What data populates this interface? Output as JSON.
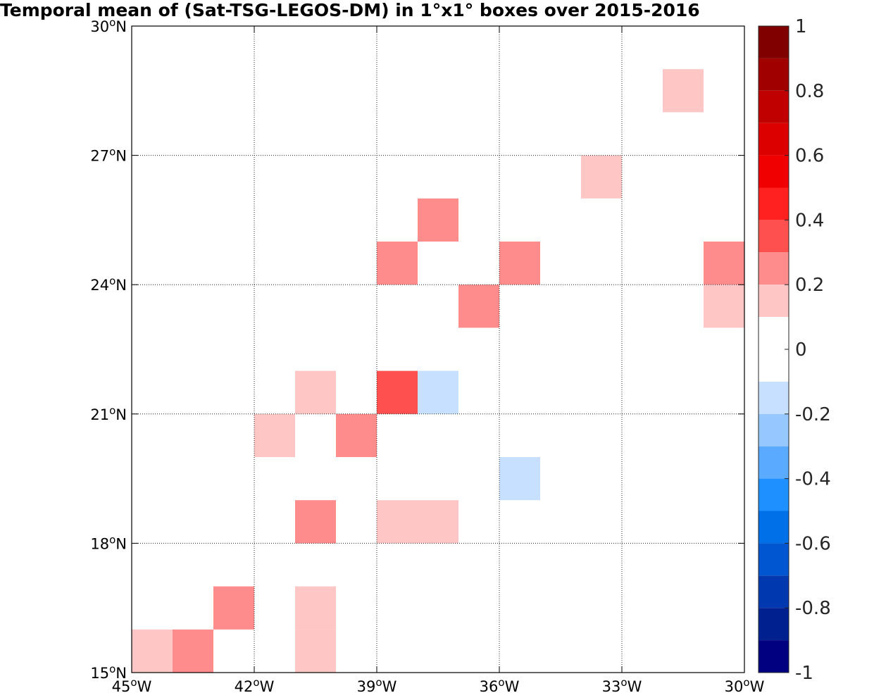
{
  "chart_data": {
    "type": "heatmap",
    "title": "Temporal mean of (Sat-TSG-LEGOS-DM) in 1°x1° boxes over 2015-2016",
    "xlim": [
      -45,
      -30
    ],
    "ylim": [
      15,
      30
    ],
    "grid": true,
    "x_ticks": [
      {
        "value": -45,
        "deg": "45",
        "suffix": "W"
      },
      {
        "value": -42,
        "deg": "42",
        "suffix": "W"
      },
      {
        "value": -39,
        "deg": "39",
        "suffix": "W"
      },
      {
        "value": -36,
        "deg": "36",
        "suffix": "W"
      },
      {
        "value": -33,
        "deg": "33",
        "suffix": "W"
      },
      {
        "value": -30,
        "deg": "30",
        "suffix": "W"
      }
    ],
    "y_ticks": [
      {
        "value": 15,
        "deg": "15",
        "suffix": "N"
      },
      {
        "value": 18,
        "deg": "18",
        "suffix": "N"
      },
      {
        "value": 21,
        "deg": "21",
        "suffix": "N"
      },
      {
        "value": 24,
        "deg": "24",
        "suffix": "N"
      },
      {
        "value": 27,
        "deg": "27",
        "suffix": "N"
      },
      {
        "value": 30,
        "deg": "30",
        "suffix": "N"
      }
    ],
    "degree_symbol": "o",
    "colorbar": {
      "range": [
        -1,
        1
      ],
      "ticks": [
        {
          "value": 1,
          "label": "1"
        },
        {
          "value": 0.8,
          "label": "0.8"
        },
        {
          "value": 0.6,
          "label": "0.6"
        },
        {
          "value": 0.4,
          "label": "0.4"
        },
        {
          "value": 0.2,
          "label": "0.2"
        },
        {
          "value": 0,
          "label": "0"
        },
        {
          "value": -0.2,
          "label": "-0.2"
        },
        {
          "value": -0.4,
          "label": "-0.4"
        },
        {
          "value": -0.6,
          "label": "-0.6"
        },
        {
          "value": -0.8,
          "label": "-0.8"
        },
        {
          "value": -1,
          "label": "-1"
        }
      ],
      "levels": [
        {
          "min": 0.9,
          "max": 1.0,
          "color": "#800000"
        },
        {
          "min": 0.8,
          "max": 0.9,
          "color": "#a00000"
        },
        {
          "min": 0.7,
          "max": 0.8,
          "color": "#c00000"
        },
        {
          "min": 0.6,
          "max": 0.7,
          "color": "#dd0000"
        },
        {
          "min": 0.5,
          "max": 0.6,
          "color": "#f00000"
        },
        {
          "min": 0.4,
          "max": 0.5,
          "color": "#ff2020"
        },
        {
          "min": 0.3,
          "max": 0.4,
          "color": "#ff5050"
        },
        {
          "min": 0.2,
          "max": 0.3,
          "color": "#ff8c8c"
        },
        {
          "min": 0.1,
          "max": 0.2,
          "color": "#ffc6c6"
        },
        {
          "min": -0.1,
          "max": 0.1,
          "color": "#ffffff"
        },
        {
          "min": -0.2,
          "max": -0.1,
          "color": "#c8e0ff"
        },
        {
          "min": -0.3,
          "max": -0.2,
          "color": "#96c8ff"
        },
        {
          "min": -0.4,
          "max": -0.3,
          "color": "#5aaaff"
        },
        {
          "min": -0.5,
          "max": -0.4,
          "color": "#1e90ff"
        },
        {
          "min": -0.6,
          "max": -0.5,
          "color": "#0070e8"
        },
        {
          "min": -0.7,
          "max": -0.6,
          "color": "#0055d0"
        },
        {
          "min": -0.8,
          "max": -0.7,
          "color": "#0038b0"
        },
        {
          "min": -0.9,
          "max": -0.8,
          "color": "#002090"
        },
        {
          "min": -1.0,
          "max": -0.9,
          "color": "#000080"
        }
      ]
    },
    "cells": [
      {
        "lon": -45,
        "lat": 15,
        "value": 0.15
      },
      {
        "lon": -44,
        "lat": 15,
        "value": 0.25
      },
      {
        "lon": -43,
        "lat": 16,
        "value": 0.25
      },
      {
        "lon": -41,
        "lat": 15,
        "value": 0.15
      },
      {
        "lon": -41,
        "lat": 16,
        "value": 0.15
      },
      {
        "lon": -41,
        "lat": 18,
        "value": 0.25
      },
      {
        "lon": -39,
        "lat": 18,
        "value": 0.15
      },
      {
        "lon": -38,
        "lat": 18,
        "value": 0.15
      },
      {
        "lon": -36,
        "lat": 19,
        "value": -0.15
      },
      {
        "lon": -42,
        "lat": 20,
        "value": 0.15
      },
      {
        "lon": -40,
        "lat": 20,
        "value": 0.25
      },
      {
        "lon": -41,
        "lat": 21,
        "value": 0.15
      },
      {
        "lon": -39,
        "lat": 21,
        "value": 0.35
      },
      {
        "lon": -38,
        "lat": 21,
        "value": -0.15
      },
      {
        "lon": -37,
        "lat": 23,
        "value": 0.25
      },
      {
        "lon": -39,
        "lat": 24,
        "value": 0.25
      },
      {
        "lon": -36,
        "lat": 24,
        "value": 0.25
      },
      {
        "lon": -38,
        "lat": 25,
        "value": 0.25
      },
      {
        "lon": -31,
        "lat": 24,
        "value": 0.25
      },
      {
        "lon": -31,
        "lat": 23,
        "value": 0.15
      },
      {
        "lon": -34,
        "lat": 26,
        "value": 0.15
      },
      {
        "lon": -32,
        "lat": 28,
        "value": 0.15
      }
    ]
  }
}
